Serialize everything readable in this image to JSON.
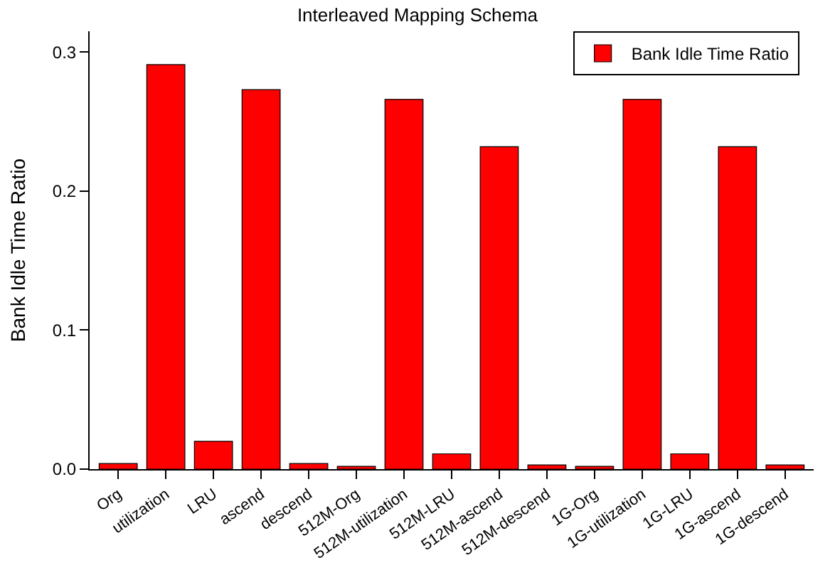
{
  "chart_data": {
    "type": "bar",
    "title": "Interleaved Mapping Schema",
    "ylabel": "Bank Idle Time Ratio",
    "categories": [
      "Org",
      "utilization",
      "LRU",
      "ascend",
      "descend",
      "512M-Org",
      "512M-utilization",
      "512M-LRU",
      "512M-ascend",
      "512M-descend",
      "1G-Org",
      "1G-utilization",
      "1G-LRU",
      "1G-ascend",
      "1G-descend"
    ],
    "series": [
      {
        "name": "Bank Idle Time Ratio",
        "color": "#ff0000",
        "values": [
          0.004,
          0.291,
          0.02,
          0.273,
          0.004,
          0.002,
          0.266,
          0.011,
          0.232,
          0.003,
          0.002,
          0.266,
          0.011,
          0.232,
          0.003
        ]
      }
    ],
    "ylim": [
      0,
      0.315
    ],
    "yticks": [
      {
        "value": 0,
        "label": "0.0"
      },
      {
        "value": 0.1,
        "label": "0.1"
      },
      {
        "value": 0.2,
        "label": "0.2"
      },
      {
        "value": 0.3,
        "label": "0.3"
      }
    ],
    "legend": "top right"
  }
}
